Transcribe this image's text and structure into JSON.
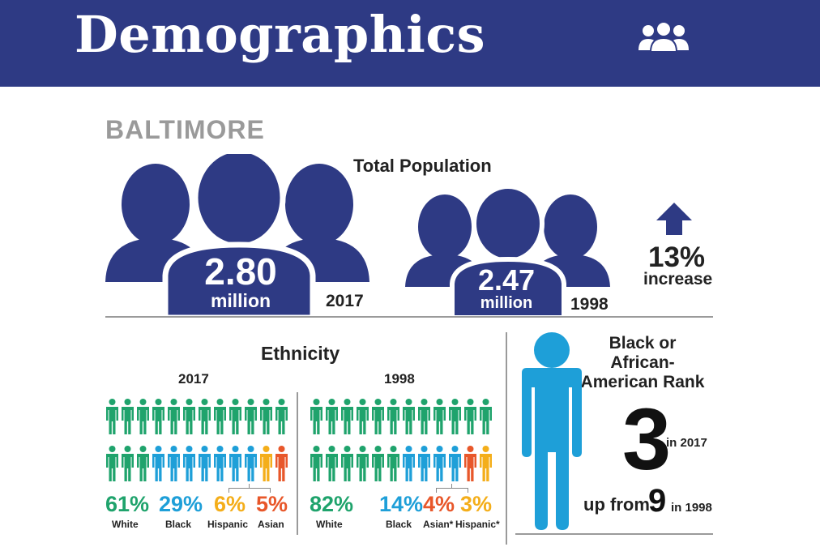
{
  "header": {
    "title": "Demographics",
    "icon": "people-group-icon",
    "background_color": "#2e3a84"
  },
  "city": "BALTIMORE",
  "population": {
    "title": "Total Population",
    "current": {
      "value": "2.80",
      "unit": "million",
      "year": "2017"
    },
    "previous": {
      "value": "2.47",
      "unit": "million",
      "year": "1998"
    },
    "change": {
      "value": "13%",
      "label": "increase",
      "direction": "up"
    },
    "silhouette_color": "#2e3a84"
  },
  "ethnicity": {
    "title": "Ethnicity",
    "colors": {
      "white": "#1fa36c",
      "black": "#1e9fd8",
      "hispanic": "#f4ae1a",
      "asian": "#e8572a"
    },
    "panels": [
      {
        "year": "2017",
        "icon_rows": [
          [
            "white",
            "white",
            "white",
            "white",
            "white",
            "white",
            "white",
            "white",
            "white",
            "white",
            "white",
            "white"
          ],
          [
            "white",
            "white",
            "white",
            "black",
            "black",
            "black",
            "black",
            "black",
            "black",
            "black",
            "hispanic",
            "asian"
          ]
        ],
        "groups": [
          {
            "pct": "61%",
            "label": "White",
            "color": "white"
          },
          {
            "pct": "29%",
            "label": "Black",
            "color": "black"
          },
          {
            "pct": "6%",
            "label": "Hispanic",
            "color": "hispanic"
          },
          {
            "pct": "5%",
            "label": "Asian",
            "color": "asian"
          }
        ]
      },
      {
        "year": "1998",
        "icon_rows": [
          [
            "white",
            "white",
            "white",
            "white",
            "white",
            "white",
            "white",
            "white",
            "white",
            "white",
            "white",
            "white"
          ],
          [
            "white",
            "white",
            "white",
            "white",
            "white",
            "white",
            "black",
            "black",
            "black",
            "black",
            "asian",
            "hispanic"
          ]
        ],
        "groups": [
          {
            "pct": "82%",
            "label": "White",
            "color": "white"
          },
          {
            "pct": "14%",
            "label": "Black",
            "color": "black"
          },
          {
            "pct": "4%",
            "label": "Asian*",
            "color": "asian"
          },
          {
            "pct": "3%",
            "label": "Hispanic*",
            "color": "hispanic"
          }
        ]
      }
    ]
  },
  "rank": {
    "title": "Black or African-American Rank",
    "value": "3",
    "year": "in 2017",
    "up_from_label": "up from",
    "previous_value": "9",
    "previous_year": "in 1998",
    "figure_color": "#1e9fd8"
  }
}
